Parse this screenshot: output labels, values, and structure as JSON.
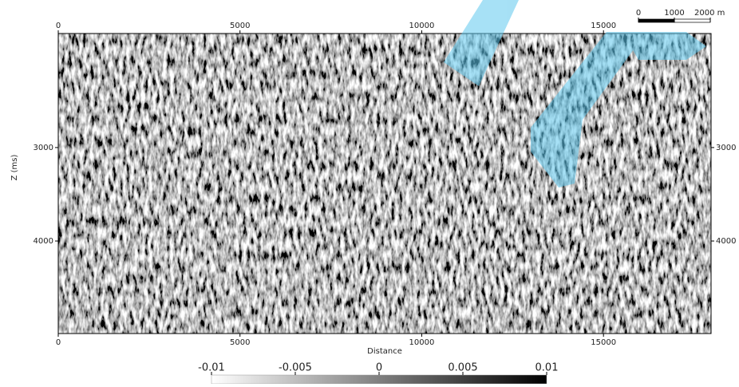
{
  "chart_data": {
    "type": "image",
    "x_label": "Distance",
    "y_label": "Z (ms)",
    "xlim": [
      0,
      17960
    ],
    "xticks": [
      0,
      5000,
      10000,
      15000
    ],
    "ylim": [
      1780,
      4990
    ],
    "yticks": [
      3000,
      4000
    ],
    "colorbar": {
      "lim": [
        -0.01,
        0.01
      ],
      "ticks": [
        -0.01,
        -0.005,
        0,
        0.005,
        0.01
      ],
      "colors": [
        "#ffffff",
        "#000000"
      ]
    },
    "scale_bar": {
      "ticks": [
        0,
        1000,
        {
          "value": 2000,
          "label": "2000 m"
        }
      ]
    }
  }
}
